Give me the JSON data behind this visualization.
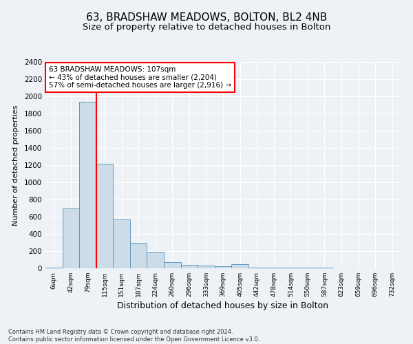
{
  "title1": "63, BRADSHAW MEADOWS, BOLTON, BL2 4NB",
  "title2": "Size of property relative to detached houses in Bolton",
  "xlabel": "Distribution of detached houses by size in Bolton",
  "ylabel": "Number of detached properties",
  "categories": [
    "6sqm",
    "42sqm",
    "79sqm",
    "115sqm",
    "151sqm",
    "187sqm",
    "224sqm",
    "260sqm",
    "296sqm",
    "333sqm",
    "369sqm",
    "405sqm",
    "442sqm",
    "478sqm",
    "514sqm",
    "550sqm",
    "587sqm",
    "623sqm",
    "659sqm",
    "696sqm",
    "732sqm"
  ],
  "values": [
    5,
    695,
    1940,
    1215,
    570,
    300,
    195,
    75,
    40,
    30,
    25,
    50,
    10,
    5,
    5,
    5,
    5,
    0,
    0,
    0,
    0
  ],
  "bar_color": "#ccdce8",
  "bar_edge_color": "#6699bb",
  "red_line_x": 2.5,
  "annotation_text": "63 BRADSHAW MEADOWS: 107sqm\n← 43% of detached houses are smaller (2,204)\n57% of semi-detached houses are larger (2,916) →",
  "annotation_box_color": "white",
  "annotation_box_edgecolor": "red",
  "ylim": [
    0,
    2400
  ],
  "yticks": [
    0,
    200,
    400,
    600,
    800,
    1000,
    1200,
    1400,
    1600,
    1800,
    2000,
    2200,
    2400
  ],
  "footnote": "Contains HM Land Registry data © Crown copyright and database right 2024.\nContains public sector information licensed under the Open Government Licence v3.0.",
  "bg_color": "#eef2f7",
  "grid_color": "#ffffff",
  "title1_fontsize": 11,
  "title2_fontsize": 9.5,
  "xlabel_fontsize": 9,
  "ylabel_fontsize": 8,
  "footnote_fontsize": 6
}
